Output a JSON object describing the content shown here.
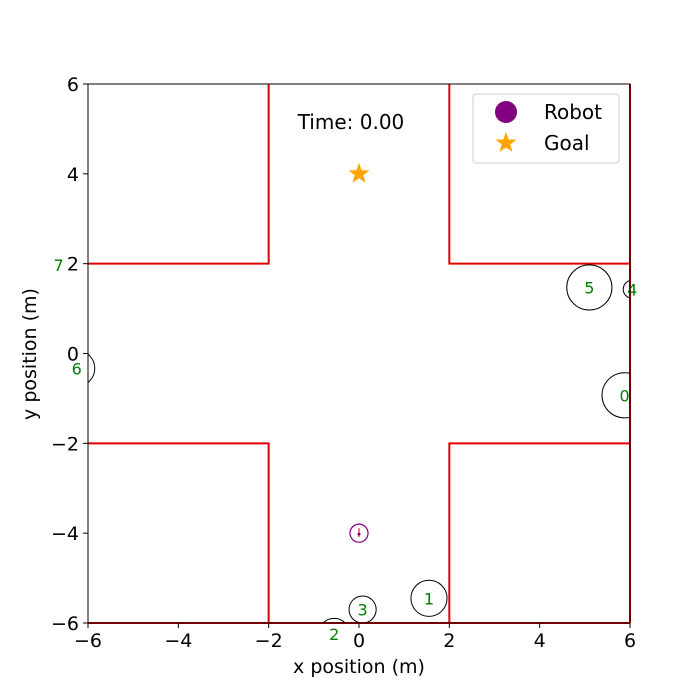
{
  "chart_data": {
    "type": "scatter",
    "title": "",
    "xlabel": "x position (m)",
    "ylabel": "y position (m)",
    "xlim": [
      -6,
      6
    ],
    "ylim": [
      -6,
      6
    ],
    "xticks": [
      -6,
      -4,
      -2,
      0,
      2,
      4,
      6
    ],
    "yticks": [
      -6,
      -4,
      -2,
      0,
      2,
      4,
      6
    ],
    "xtick_labels": [
      "−6",
      "−4",
      "−2",
      "0",
      "2",
      "4",
      "6"
    ],
    "ytick_labels": [
      "−6",
      "−4",
      "−2",
      "0",
      "2",
      "4",
      "6"
    ],
    "grid": false,
    "time_label": "Time: 0.00",
    "walls": [
      [
        [
          -6,
          2
        ],
        [
          -2,
          2
        ],
        [
          -2,
          6
        ]
      ],
      [
        [
          2,
          6
        ],
        [
          2,
          2
        ],
        [
          6,
          2
        ]
      ],
      [
        [
          -6,
          -2
        ],
        [
          -2,
          -2
        ],
        [
          -2,
          -6
        ]
      ],
      [
        [
          2,
          -6
        ],
        [
          2,
          -2
        ],
        [
          6,
          -2
        ]
      ],
      [
        [
          6,
          6
        ],
        [
          6,
          -6
        ]
      ],
      [
        [
          -6,
          -6
        ],
        [
          6,
          -6
        ]
      ]
    ],
    "wall_color": "#e00000",
    "robot": {
      "x": 0.0,
      "y": -4.0,
      "radius": 0.2,
      "color": "#800080"
    },
    "goal": {
      "x": 0.0,
      "y": 4.0,
      "color": "#ffa500"
    },
    "humans": [
      {
        "id": "0",
        "x": 5.88,
        "y": -0.93,
        "radius": 0.5
      },
      {
        "id": "1",
        "x": 1.55,
        "y": -5.45,
        "radius": 0.4
      },
      {
        "id": "2",
        "x": -0.55,
        "y": -6.25,
        "radius": 0.35
      },
      {
        "id": "3",
        "x": 0.08,
        "y": -5.7,
        "radius": 0.3
      },
      {
        "id": "4",
        "x": 6.05,
        "y": 1.43,
        "radius": 0.2
      },
      {
        "id": "5",
        "x": 5.1,
        "y": 1.47,
        "radius": 0.5
      },
      {
        "id": "6",
        "x": -6.25,
        "y": -0.33,
        "radius": 0.4
      },
      {
        "id": "7",
        "x": -6.65,
        "y": 1.97,
        "radius": 0.3
      }
    ],
    "legend": {
      "placement": "top-right",
      "entries": [
        {
          "label": "Robot",
          "marker": "circle",
          "color": "#800080"
        },
        {
          "label": "Goal",
          "marker": "star",
          "color": "#ffa500"
        }
      ]
    }
  }
}
